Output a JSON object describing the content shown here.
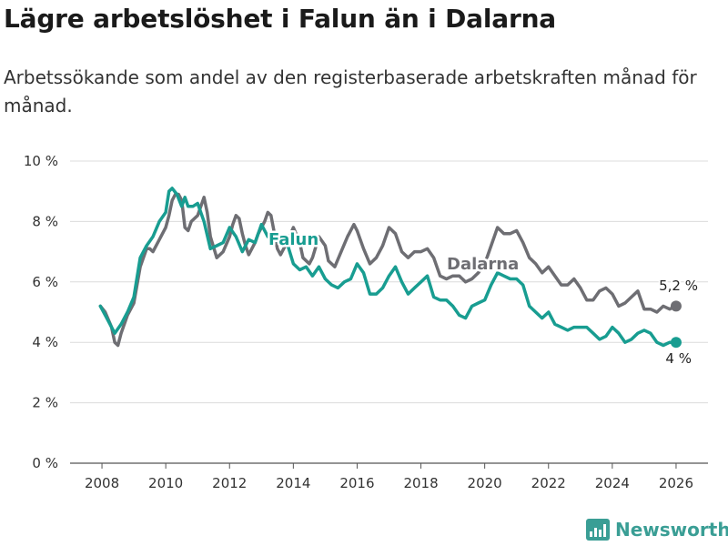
{
  "title": "Lägre arbetslöshet i Falun än i Dalarna",
  "subtitle": "Arbetssökande som andel av den registerbaserade arbetskraften månad för månad.",
  "brand": {
    "name": "Newsworthy",
    "color": "#3a9e95"
  },
  "chart_data": {
    "type": "line",
    "title": "Lägre arbetslöshet i Falun än i Dalarna",
    "xlabel": "",
    "ylabel": "",
    "xlim": [
      2007.0,
      2027.0
    ],
    "ylim": [
      0,
      10
    ],
    "x_ticks": [
      2008,
      2010,
      2012,
      2014,
      2016,
      2018,
      2020,
      2022,
      2024,
      2026
    ],
    "x_tick_labels": [
      "2008",
      "2010",
      "2012",
      "2014",
      "2016",
      "2018",
      "2020",
      "2022",
      "2024",
      "2026"
    ],
    "y_ticks": [
      0,
      2,
      4,
      6,
      8,
      10
    ],
    "y_tick_labels": [
      "0 %",
      "2 %",
      "4 %",
      "6 %",
      "8 %",
      "10 %"
    ],
    "grid": "horizontal",
    "series": [
      {
        "name": "Dalarna",
        "label": "Dalarna",
        "color": "#6e6e73",
        "end_label": "5,2 %",
        "x": [
          2007.95,
          2008.1,
          2008.3,
          2008.4,
          2008.5,
          2008.6,
          2008.8,
          2009.0,
          2009.2,
          2009.4,
          2009.5,
          2009.6,
          2009.8,
          2010.0,
          2010.1,
          2010.2,
          2010.3,
          2010.4,
          2010.5,
          2010.6,
          2010.7,
          2010.8,
          2011.0,
          2011.2,
          2011.3,
          2011.4,
          2011.6,
          2011.8,
          2012.0,
          2012.1,
          2012.2,
          2012.3,
          2012.4,
          2012.5,
          2012.6,
          2012.8,
          2012.9,
          2013.1,
          2013.2,
          2013.3,
          2013.5,
          2013.6,
          2013.8,
          2014.0,
          2014.2,
          2014.3,
          2014.5,
          2014.6,
          2014.8,
          2015.0,
          2015.1,
          2015.3,
          2015.5,
          2015.7,
          2015.9,
          2016.0,
          2016.2,
          2016.4,
          2016.6,
          2016.8,
          2017.0,
          2017.2,
          2017.4,
          2017.6,
          2017.8,
          2018.0,
          2018.2,
          2018.4,
          2018.6,
          2018.8,
          2019.0,
          2019.2,
          2019.4,
          2019.6,
          2019.8,
          2020.0,
          2020.2,
          2020.4,
          2020.6,
          2020.8,
          2021.0,
          2021.2,
          2021.4,
          2021.6,
          2021.8,
          2022.0,
          2022.2,
          2022.4,
          2022.6,
          2022.8,
          2023.0,
          2023.2,
          2023.4,
          2023.6,
          2023.8,
          2024.0,
          2024.2,
          2024.4,
          2024.6,
          2024.8,
          2025.0,
          2025.2,
          2025.4,
          2025.6,
          2025.8,
          2026.0
        ],
        "values": [
          5.2,
          5.0,
          4.5,
          4.0,
          3.9,
          4.3,
          4.9,
          5.3,
          6.5,
          7.1,
          7.1,
          7.0,
          7.4,
          7.8,
          8.2,
          8.7,
          8.9,
          8.9,
          8.7,
          7.8,
          7.7,
          8.0,
          8.2,
          8.8,
          8.3,
          7.5,
          6.8,
          7.0,
          7.5,
          7.9,
          8.2,
          8.1,
          7.6,
          7.2,
          6.9,
          7.3,
          7.6,
          8.0,
          8.3,
          8.2,
          7.1,
          6.9,
          7.3,
          7.8,
          7.3,
          6.8,
          6.6,
          6.8,
          7.5,
          7.2,
          6.7,
          6.5,
          7.0,
          7.5,
          7.9,
          7.7,
          7.1,
          6.6,
          6.8,
          7.2,
          7.8,
          7.6,
          7.0,
          6.8,
          7.0,
          7.0,
          7.1,
          6.8,
          6.2,
          6.1,
          6.2,
          6.2,
          6.0,
          6.1,
          6.3,
          6.6,
          7.2,
          7.8,
          7.6,
          7.6,
          7.7,
          7.3,
          6.8,
          6.6,
          6.3,
          6.5,
          6.2,
          5.9,
          5.9,
          6.1,
          5.8,
          5.4,
          5.4,
          5.7,
          5.8,
          5.6,
          5.2,
          5.3,
          5.5,
          5.7,
          5.1,
          5.1,
          5.0,
          5.2,
          5.1,
          5.2
        ]
      },
      {
        "name": "Falun",
        "label": "Falun",
        "color": "#189d91",
        "end_label": "4 %",
        "x": [
          2007.95,
          2008.1,
          2008.3,
          2008.4,
          2008.6,
          2008.8,
          2009.0,
          2009.2,
          2009.4,
          2009.6,
          2009.8,
          2010.0,
          2010.1,
          2010.2,
          2010.35,
          2010.5,
          2010.6,
          2010.7,
          2010.85,
          2011.0,
          2011.2,
          2011.4,
          2011.6,
          2011.8,
          2012.0,
          2012.2,
          2012.4,
          2012.6,
          2012.8,
          2013.0,
          2013.2,
          2013.4,
          2013.6,
          2013.8,
          2014.0,
          2014.2,
          2014.4,
          2014.6,
          2014.8,
          2015.0,
          2015.2,
          2015.4,
          2015.6,
          2015.8,
          2016.0,
          2016.2,
          2016.4,
          2016.6,
          2016.8,
          2017.0,
          2017.2,
          2017.4,
          2017.6,
          2017.8,
          2018.0,
          2018.2,
          2018.4,
          2018.6,
          2018.8,
          2019.0,
          2019.2,
          2019.4,
          2019.6,
          2019.8,
          2020.0,
          2020.2,
          2020.4,
          2020.6,
          2020.8,
          2021.0,
          2021.2,
          2021.4,
          2021.6,
          2021.8,
          2022.0,
          2022.2,
          2022.4,
          2022.6,
          2022.8,
          2023.0,
          2023.2,
          2023.4,
          2023.6,
          2023.8,
          2024.0,
          2024.2,
          2024.4,
          2024.6,
          2024.8,
          2025.0,
          2025.2,
          2025.4,
          2025.6,
          2025.8,
          2026.0
        ],
        "values": [
          5.2,
          4.9,
          4.5,
          4.3,
          4.6,
          5.0,
          5.5,
          6.8,
          7.2,
          7.5,
          8.0,
          8.3,
          9.0,
          9.1,
          8.9,
          8.5,
          8.8,
          8.5,
          8.5,
          8.6,
          8.0,
          7.1,
          7.2,
          7.3,
          7.8,
          7.5,
          7.0,
          7.4,
          7.3,
          7.9,
          7.5,
          7.4,
          7.3,
          7.3,
          6.6,
          6.4,
          6.5,
          6.2,
          6.5,
          6.1,
          5.9,
          5.8,
          6.0,
          6.1,
          6.6,
          6.3,
          5.6,
          5.6,
          5.8,
          6.2,
          6.5,
          6.0,
          5.6,
          5.8,
          6.0,
          6.2,
          5.5,
          5.4,
          5.4,
          5.2,
          4.9,
          4.8,
          5.2,
          5.3,
          5.4,
          5.9,
          6.3,
          6.2,
          6.1,
          6.1,
          5.9,
          5.2,
          5.0,
          4.8,
          5.0,
          4.6,
          4.5,
          4.4,
          4.5,
          4.5,
          4.5,
          4.3,
          4.1,
          4.2,
          4.5,
          4.3,
          4.0,
          4.1,
          4.3,
          4.4,
          4.3,
          4.0,
          3.9,
          4.0,
          4.0
        ]
      }
    ]
  }
}
